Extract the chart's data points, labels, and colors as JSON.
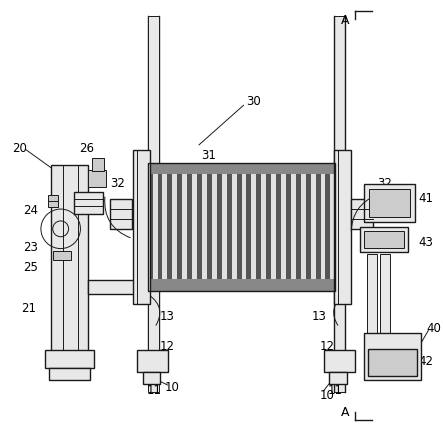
{
  "bg_color": "#ffffff",
  "line_color": "#1a1a1a",
  "spool_stripe_dark": "#555555",
  "spool_stripe_light": "#e0e0e0",
  "gray_fill": "#e8e8e8",
  "med_gray": "#cccccc",
  "dark_band": "#888888",
  "label_fontsize": 8.5,
  "figsize": [
    4.43,
    4.31
  ],
  "dpi": 100
}
